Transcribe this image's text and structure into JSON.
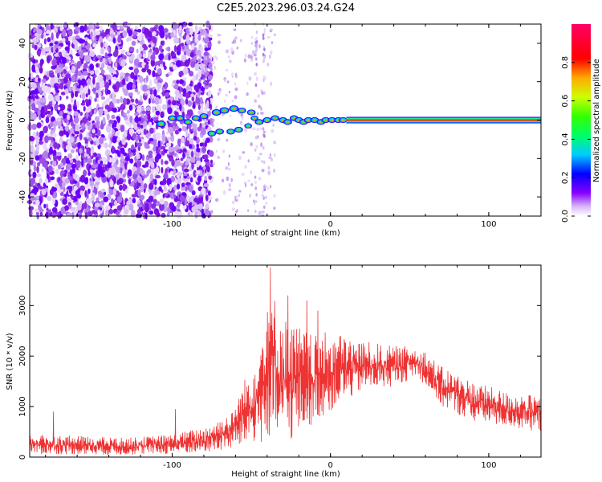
{
  "title": "C2E5.2023.296.03.24.G24",
  "chart_data": [
    {
      "type": "heatmap",
      "xlabel": "Height of straight line (km)",
      "ylabel": "Frequency (Hz)",
      "xlim": [
        -190,
        133
      ],
      "ylim": [
        -50,
        50
      ],
      "xticks": [
        -100,
        0,
        100
      ],
      "yticks": [
        -40,
        -20,
        0,
        20,
        40
      ],
      "colorbar": {
        "label": "Normalized spectral amplitude",
        "ticks": [
          0.0,
          0.2,
          0.4,
          0.6,
          0.8
        ],
        "range": [
          0,
          1
        ],
        "colormap": "rainbow-on-white"
      },
      "features": [
        {
          "x_from": -190,
          "x_to": -75,
          "kind": "scattered noise speckle, purple, dense"
        },
        {
          "x_from": -75,
          "x_to": -35,
          "kind": "sparse light speckle"
        },
        {
          "x_from": -108,
          "x_to": -40,
          "kind": "split signal blobs near -8..+7 Hz"
        },
        {
          "x_from": -40,
          "x_to": 10,
          "kind": "converging dotted signal near 0 Hz"
        },
        {
          "x_from": 10,
          "x_to": 133,
          "kind": "solid red line at 0 Hz"
        }
      ]
    },
    {
      "type": "line",
      "xlabel": "Height of straight line (km)",
      "ylabel": "SNR (10 * v/v)",
      "xlim": [
        -190,
        133
      ],
      "ylim": [
        0,
        3800
      ],
      "xticks": [
        -100,
        0,
        100
      ],
      "yticks": [
        0,
        1000,
        2000,
        3000
      ],
      "color": "#ee3333",
      "envelope": [
        {
          "x": -190,
          "low": 60,
          "high": 450
        },
        {
          "x": -160,
          "low": 50,
          "high": 420
        },
        {
          "x": -130,
          "low": 40,
          "high": 380
        },
        {
          "x": -100,
          "low": 60,
          "high": 450
        },
        {
          "x": -80,
          "low": 80,
          "high": 600
        },
        {
          "x": -62,
          "low": 150,
          "high": 900
        },
        {
          "x": -55,
          "low": 200,
          "high": 1500
        },
        {
          "x": -45,
          "low": 300,
          "high": 2200
        },
        {
          "x": -40,
          "low": 100,
          "high": 3600
        },
        {
          "x": -30,
          "low": 250,
          "high": 2800
        },
        {
          "x": -20,
          "low": 400,
          "high": 2600
        },
        {
          "x": -10,
          "low": 700,
          "high": 2400
        },
        {
          "x": 0,
          "low": 900,
          "high": 2500
        },
        {
          "x": 20,
          "low": 1300,
          "high": 2300
        },
        {
          "x": 40,
          "low": 1400,
          "high": 2200
        },
        {
          "x": 55,
          "low": 1600,
          "high": 2200
        },
        {
          "x": 60,
          "low": 1400,
          "high": 2100
        },
        {
          "x": 70,
          "low": 1000,
          "high": 1800
        },
        {
          "x": 90,
          "low": 700,
          "high": 1500
        },
        {
          "x": 110,
          "low": 600,
          "high": 1300
        },
        {
          "x": 133,
          "low": 500,
          "high": 1200
        }
      ],
      "spikes": [
        {
          "x": -38,
          "y": 3750
        },
        {
          "x": -27,
          "y": 3200
        },
        {
          "x": -15,
          "y": 3100
        },
        {
          "x": -8,
          "y": 2900
        },
        {
          "x": -98,
          "y": 950
        },
        {
          "x": -175,
          "y": 900
        }
      ]
    }
  ]
}
